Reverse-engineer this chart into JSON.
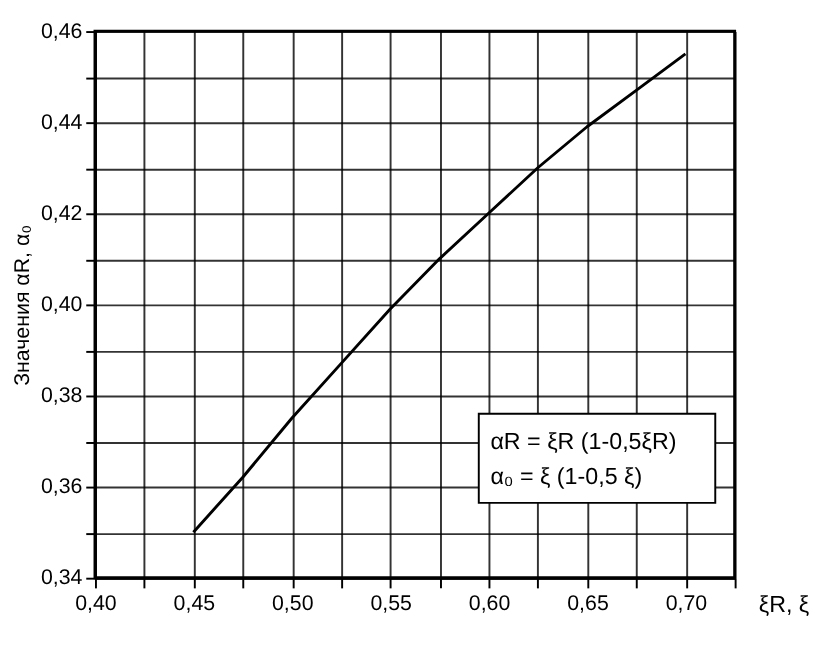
{
  "chart_data": {
    "type": "line",
    "xlabel": "ξR, ξ",
    "ylabel": "Значения αR, α₀",
    "annotations": [
      "αR = ξR (1-0,5ξR)",
      "α₀ = ξ (1-0,5 ξ)"
    ],
    "x": [
      0.45,
      0.475,
      0.5,
      0.525,
      0.55,
      0.575,
      0.6,
      0.625,
      0.65,
      0.675,
      0.7
    ],
    "series": [
      {
        "color": "#000000",
        "values": [
          0.35,
          0.362,
          0.375,
          0.387,
          0.399,
          0.41,
          0.42,
          0.43,
          0.439,
          0.447,
          0.455
        ]
      }
    ],
    "xlim": [
      0.4,
      0.725
    ],
    "xticks": [
      {
        "value": 0.4,
        "label": "0,40"
      },
      {
        "value": 0.425,
        "label": null
      },
      {
        "value": 0.45,
        "label": "0,45"
      },
      {
        "value": 0.475,
        "label": null
      },
      {
        "value": 0.5,
        "label": "0,50"
      },
      {
        "value": 0.525,
        "label": null
      },
      {
        "value": 0.55,
        "label": "0,55"
      },
      {
        "value": 0.575,
        "label": null
      },
      {
        "value": 0.6,
        "label": "0,60"
      },
      {
        "value": 0.625,
        "label": null
      },
      {
        "value": 0.65,
        "label": "0,65"
      },
      {
        "value": 0.675,
        "label": null
      },
      {
        "value": 0.7,
        "label": "0,70"
      },
      {
        "value": 0.725,
        "label": null
      }
    ],
    "ylim": [
      0.34,
      0.46
    ],
    "yticks": [
      {
        "value": 0.34,
        "label": "0,34"
      },
      {
        "value": 0.35,
        "label": null
      },
      {
        "value": 0.36,
        "label": "0,36"
      },
      {
        "value": 0.37,
        "label": null
      },
      {
        "value": 0.38,
        "label": "0,38"
      },
      {
        "value": 0.39,
        "label": null
      },
      {
        "value": 0.4,
        "label": "0,40"
      },
      {
        "value": 0.41,
        "label": null
      },
      {
        "value": 0.42,
        "label": "0,42"
      },
      {
        "value": 0.43,
        "label": null
      },
      {
        "value": 0.44,
        "label": "0,44"
      },
      {
        "value": 0.45,
        "label": null
      },
      {
        "value": 0.46,
        "label": "0,46"
      }
    ],
    "grid": true,
    "marker": "none",
    "line_style": "solid"
  }
}
